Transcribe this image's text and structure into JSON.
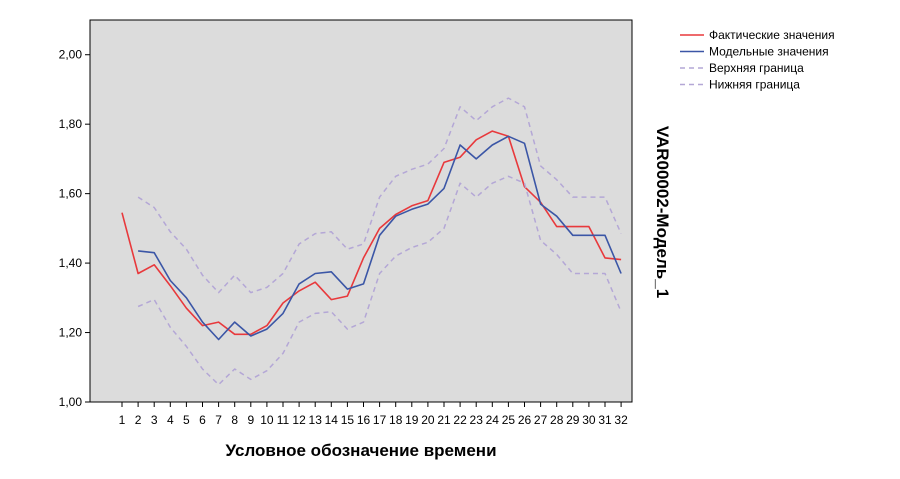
{
  "chart_data": {
    "type": "line",
    "xlabel": "Условное обозначение времени",
    "ylabel": "VAR00002-Модель_1",
    "ylim": [
      1.0,
      2.1
    ],
    "yticks": [
      "1,00",
      "1,20",
      "1,40",
      "1,60",
      "1,80",
      "2,00"
    ],
    "x": [
      "1",
      "2",
      "3",
      "4",
      "5",
      "6",
      "7",
      "8",
      "9",
      "10",
      "11",
      "12",
      "13",
      "14",
      "15",
      "16",
      "17",
      "18",
      "19",
      "20",
      "21",
      "22",
      "23",
      "24",
      "25",
      "26",
      "27",
      "28",
      "29",
      "30",
      "31",
      "32"
    ],
    "legend_position": "top-right",
    "grid": false,
    "colors": {
      "plot_bg": "#dcdcdc",
      "actual": "#e8393c",
      "model": "#3b56a6",
      "bounds": "#b4a7d6"
    },
    "series": [
      {
        "name": "Фактические значения",
        "style": "solid",
        "colorKey": "actual",
        "values": [
          1.545,
          1.37,
          1.395,
          1.335,
          1.27,
          1.22,
          1.23,
          1.195,
          1.195,
          1.22,
          1.285,
          1.32,
          1.345,
          1.295,
          1.305,
          1.415,
          1.5,
          1.54,
          1.565,
          1.58,
          1.69,
          1.705,
          1.755,
          1.78,
          1.765,
          1.62,
          1.575,
          1.505,
          1.505,
          1.505,
          1.415,
          1.41
        ]
      },
      {
        "name": "Модельные значения",
        "style": "solid",
        "colorKey": "model",
        "values": [
          null,
          1.435,
          1.43,
          1.35,
          1.3,
          1.23,
          1.18,
          1.23,
          1.19,
          1.21,
          1.255,
          1.34,
          1.37,
          1.375,
          1.325,
          1.34,
          1.48,
          1.535,
          1.555,
          1.57,
          1.615,
          1.74,
          1.7,
          1.74,
          1.765,
          1.745,
          1.57,
          1.535,
          1.48,
          1.48,
          1.48,
          1.37
        ]
      },
      {
        "name": "Верхняя граница",
        "style": "dashed",
        "colorKey": "bounds",
        "values": [
          null,
          1.59,
          1.56,
          1.49,
          1.44,
          1.365,
          1.315,
          1.365,
          1.315,
          1.33,
          1.37,
          1.455,
          1.485,
          1.49,
          1.44,
          1.455,
          1.59,
          1.65,
          1.67,
          1.685,
          1.73,
          1.85,
          1.81,
          1.85,
          1.875,
          1.85,
          1.68,
          1.64,
          1.59,
          1.59,
          1.59,
          1.485
        ]
      },
      {
        "name": "Нижняя граница",
        "style": "dashed",
        "colorKey": "bounds",
        "values": [
          null,
          1.275,
          1.295,
          1.215,
          1.16,
          1.095,
          1.05,
          1.095,
          1.065,
          1.09,
          1.14,
          1.23,
          1.255,
          1.26,
          1.21,
          1.23,
          1.37,
          1.42,
          1.445,
          1.46,
          1.5,
          1.63,
          1.59,
          1.63,
          1.65,
          1.63,
          1.465,
          1.425,
          1.37,
          1.37,
          1.37,
          1.26
        ]
      }
    ]
  }
}
